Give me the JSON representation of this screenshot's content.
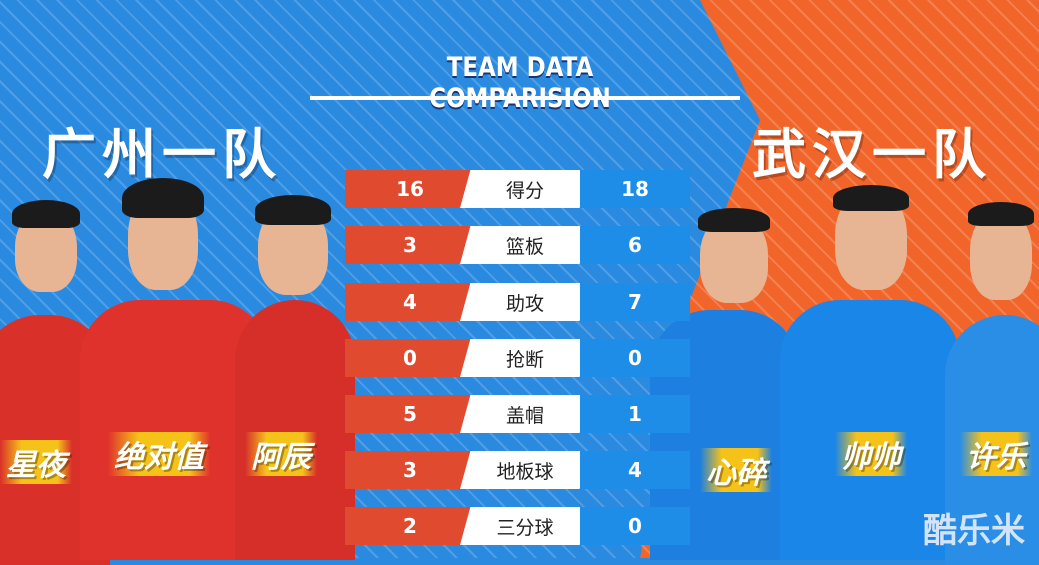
{
  "title": "TEAM DATA COMPARISION",
  "teams": {
    "left": "广州一队",
    "right": "武汉一队"
  },
  "colors": {
    "left": "#e04a2f",
    "right": "#1e8de8",
    "bg_left": "#2a8ae0",
    "bg_right": "#f2652a"
  },
  "players": {
    "left": [
      "星夜",
      "绝对值",
      "阿辰"
    ],
    "right": [
      "心碎",
      "帅帅",
      "许乐"
    ]
  },
  "stats": [
    {
      "label": "得分",
      "left": "16",
      "right": "18"
    },
    {
      "label": "篮板",
      "left": "3",
      "right": "6"
    },
    {
      "label": "助攻",
      "left": "4",
      "right": "7"
    },
    {
      "label": "抢断",
      "left": "0",
      "right": "0"
    },
    {
      "label": "盖帽",
      "left": "5",
      "right": "1"
    },
    {
      "label": "地板球",
      "left": "3",
      "right": "4"
    },
    {
      "label": "三分球",
      "left": "2",
      "right": "0"
    }
  ],
  "watermark": "酷乐米"
}
